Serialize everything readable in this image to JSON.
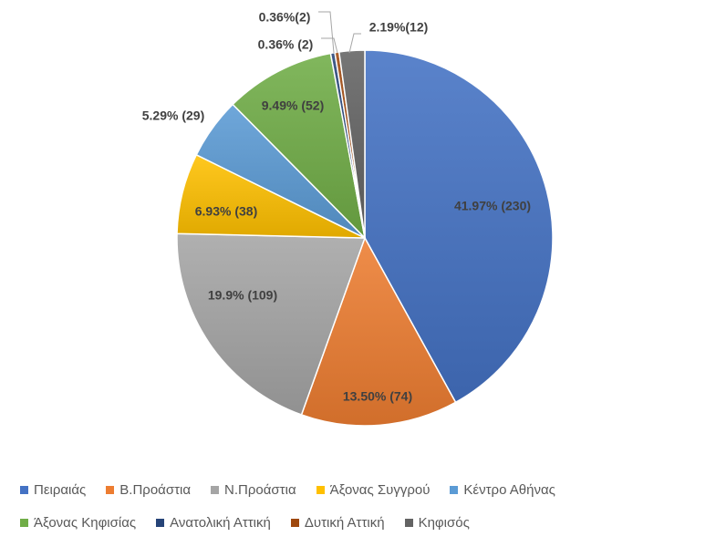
{
  "chart_data": {
    "type": "pie",
    "title": "",
    "start_angle_deg": 0,
    "direction": "clockwise",
    "legend_position": "bottom",
    "slices": [
      {
        "name": "Πειραιάς",
        "value": 230,
        "label": "41.97% (230)",
        "color": "#4472C4"
      },
      {
        "name": "Β.Προάστια",
        "value": 74,
        "label": "13.50% (74)",
        "color": "#ED7D31"
      },
      {
        "name": "Ν.Προάστια",
        "value": 109,
        "label": "19.9% (109)",
        "color": "#A5A5A5"
      },
      {
        "name": "Άξονας Συγγρού",
        "value": 38,
        "label": "6.93% (38)",
        "color": "#FFC000"
      },
      {
        "name": "Κέντρο Αθήνας",
        "value": 29,
        "label": "5.29% (29)",
        "color": "#5B9BD5"
      },
      {
        "name": "Άξονας Κηφισίας",
        "value": 52,
        "label": "9.49% (52)",
        "color": "#70AD47"
      },
      {
        "name": "Ανατολική Αττική",
        "value": 2,
        "label": "0.36% (2)",
        "color": "#264478"
      },
      {
        "name": "Δυτική Αττική",
        "value": 2,
        "label": "0.36%(2)",
        "color": "#9E480E"
      },
      {
        "name": "Κηφισός",
        "value": 12,
        "label": "2.19%(12)",
        "color": "#636363"
      }
    ]
  }
}
